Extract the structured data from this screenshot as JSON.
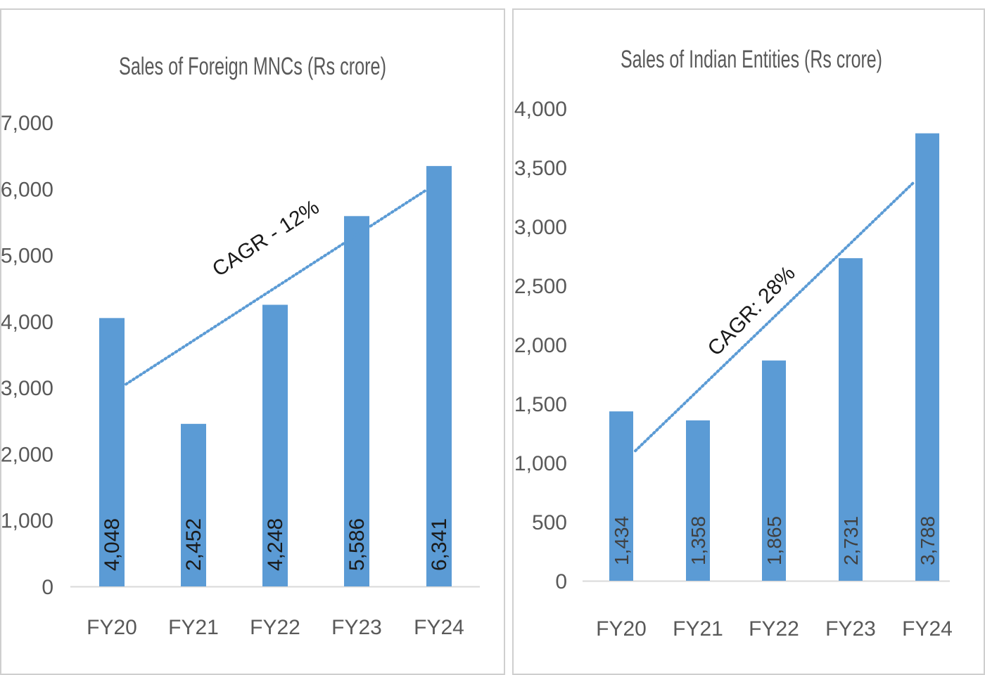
{
  "chart_data": [
    {
      "type": "bar",
      "title": "Sales of Foreign MNCs (Rs crore)",
      "categories": [
        "FY20",
        "FY21",
        "FY22",
        "FY23",
        "FY24"
      ],
      "values": [
        4048,
        2452,
        4248,
        5586,
        6341
      ],
      "data_labels": [
        "4,048",
        "2,452",
        "4,248",
        "5,586",
        "6,341"
      ],
      "ylim": [
        0,
        7000
      ],
      "yticks": [
        "0",
        "1,000",
        "2,000",
        "3,000",
        "4,000",
        "5,000",
        "6,000",
        "7,000"
      ],
      "annotation": "CAGR - 12%",
      "trendline": {
        "style": "dotted",
        "from": [
          "FY20",
          3050
        ],
        "to": [
          "FY24",
          5980
        ]
      },
      "bar_color": "#5B9BD5",
      "grid": false
    },
    {
      "type": "bar",
      "title": "Sales of Indian Entities (Rs crore)",
      "categories": [
        "FY20",
        "FY21",
        "FY22",
        "FY23",
        "FY24"
      ],
      "values": [
        1434,
        1358,
        1865,
        2731,
        3788
      ],
      "data_labels": [
        "1,434",
        "1,358",
        "1,865",
        "2,731",
        "3,788"
      ],
      "ylim": [
        0,
        4000
      ],
      "yticks": [
        "0",
        "500",
        "1,000",
        "1,500",
        "2,000",
        "2,500",
        "3,000",
        "3,500",
        "4,000"
      ],
      "annotation": "CAGR: 28%",
      "trendline": {
        "style": "dotted",
        "from": [
          "FY20",
          1100
        ],
        "to": [
          "FY24",
          3380
        ]
      },
      "bar_color": "#5B9BD5",
      "grid": false
    }
  ]
}
